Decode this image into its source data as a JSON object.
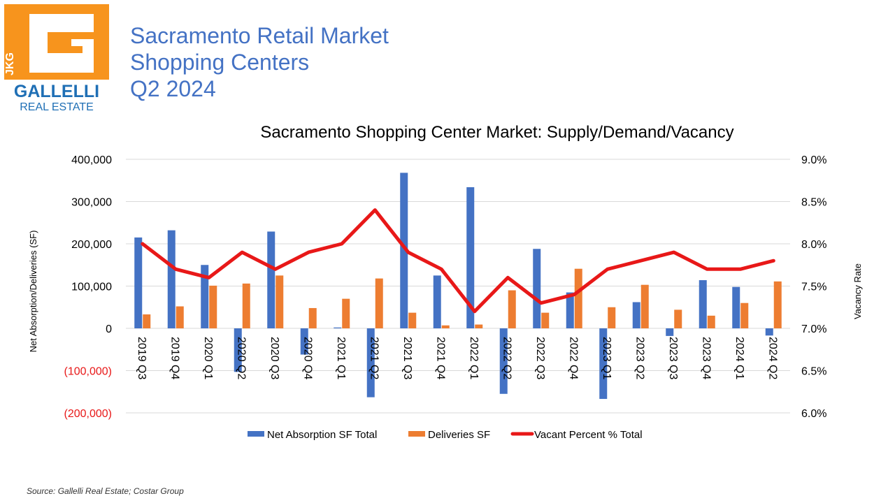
{
  "header": {
    "title_lines": [
      "Sacramento Retail Market",
      "Shopping Centers",
      "Q2 2024"
    ]
  },
  "logo": {
    "initials": "JKG",
    "name_line1": "GALLELLI",
    "name_line2": "REAL ESTATE",
    "colors": {
      "orange": "#f7941d",
      "blue": "#1f6fb5",
      "white": "#ffffff"
    }
  },
  "source": "Source:  Gallelli Real Estate; Costar Group",
  "colors": {
    "title_blue": "#4472c4",
    "bar_absorption": "#4472c4",
    "bar_deliveries": "#ed7d31",
    "line_vacancy": "#e81818",
    "negative_label": "#e81818",
    "grid": "#d9d9d9"
  },
  "chart_data": {
    "type": "bar",
    "title": "Sacramento Shopping Center Market: Supply/Demand/Vacancy",
    "ylabel": "Net Absorption/Deliveries (SF)",
    "y2label": "Vacancy Rate",
    "ylim": [
      -200000,
      400000
    ],
    "y2lim": [
      6.0,
      9.0
    ],
    "y_ticks": [
      "400,000",
      "300,000",
      "200,000",
      "100,000",
      "0",
      "(100,000)",
      "(200,000)"
    ],
    "y2_ticks": [
      "9.0%",
      "8.5%",
      "8.0%",
      "7.5%",
      "7.0%",
      "6.5%",
      "6.0%"
    ],
    "grid": true,
    "legend_position": "bottom",
    "categories": [
      "2019 Q3",
      "2019 Q4",
      "2020 Q1",
      "2020 Q2",
      "2020 Q3",
      "2020 Q4",
      "2021 Q1",
      "2021 Q2",
      "2021 Q3",
      "2021 Q4",
      "2022 Q1",
      "2022 Q2",
      "2022 Q3",
      "2022 Q4",
      "2023 Q1",
      "2023 Q2",
      "2023 Q3",
      "2023 Q4",
      "2024 Q1",
      "2024 Q2"
    ],
    "series": [
      {
        "name": "Net Absorption SF Total",
        "type": "bar",
        "axis": "left",
        "values": [
          215000,
          232000,
          150000,
          -103000,
          229000,
          -62000,
          2000,
          -163000,
          368000,
          125000,
          334000,
          -155000,
          188000,
          85000,
          -167000,
          62000,
          -18000,
          114000,
          98000,
          -17000
        ]
      },
      {
        "name": "Deliveries SF",
        "type": "bar",
        "axis": "left",
        "values": [
          33000,
          52000,
          101000,
          106000,
          125000,
          48000,
          70000,
          118000,
          37000,
          7000,
          9000,
          90000,
          37000,
          141000,
          50000,
          103000,
          44000,
          30000,
          60000,
          111000
        ]
      },
      {
        "name": "Vacant Percent % Total",
        "type": "line",
        "axis": "right",
        "values": [
          8.0,
          7.7,
          7.6,
          7.9,
          7.7,
          7.9,
          8.0,
          8.4,
          7.9,
          7.7,
          7.2,
          7.6,
          7.3,
          7.4,
          7.7,
          7.8,
          7.9,
          7.7,
          7.7,
          7.8
        ]
      }
    ]
  }
}
